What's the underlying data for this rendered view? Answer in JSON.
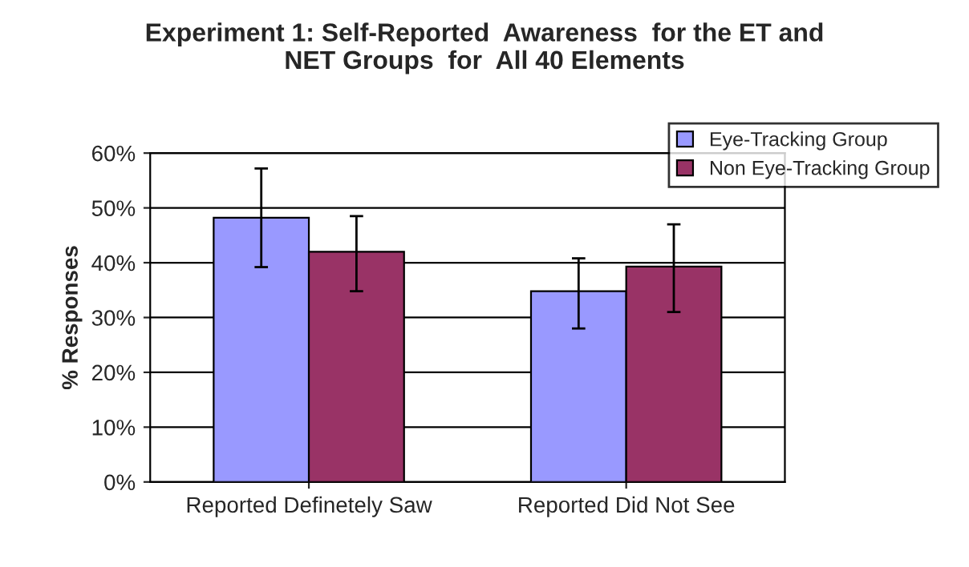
{
  "chart_data": {
    "type": "bar",
    "title": "Experiment 1: Self-Reported  Awareness  for the ET and\nNET Groups  for  All 40 Elements",
    "ylabel": "% Responses",
    "categories": [
      "Reported Definetely Saw",
      "Reported Did Not See"
    ],
    "series": [
      {
        "name": "Eye-Tracking Group",
        "color": "#9999ff",
        "values": [
          48.2,
          34.8
        ],
        "errors": [
          [
            39.2,
            57.2
          ],
          [
            28.0,
            40.8
          ]
        ]
      },
      {
        "name": "Non Eye-Tracking Group",
        "color": "#993366",
        "values": [
          42.0,
          39.3
        ],
        "errors": [
          [
            34.8,
            48.5
          ],
          [
            31.0,
            47.0
          ]
        ]
      }
    ],
    "ylim": [
      0,
      60
    ],
    "yticks": [
      {
        "value": 0,
        "label": "0%"
      },
      {
        "value": 10,
        "label": "10%"
      },
      {
        "value": 20,
        "label": "20%"
      },
      {
        "value": 30,
        "label": "30%"
      },
      {
        "value": 40,
        "label": "40%"
      },
      {
        "value": 50,
        "label": "50%"
      },
      {
        "value": 60,
        "label": "60%"
      }
    ],
    "grid": "y",
    "legend": "top right"
  }
}
